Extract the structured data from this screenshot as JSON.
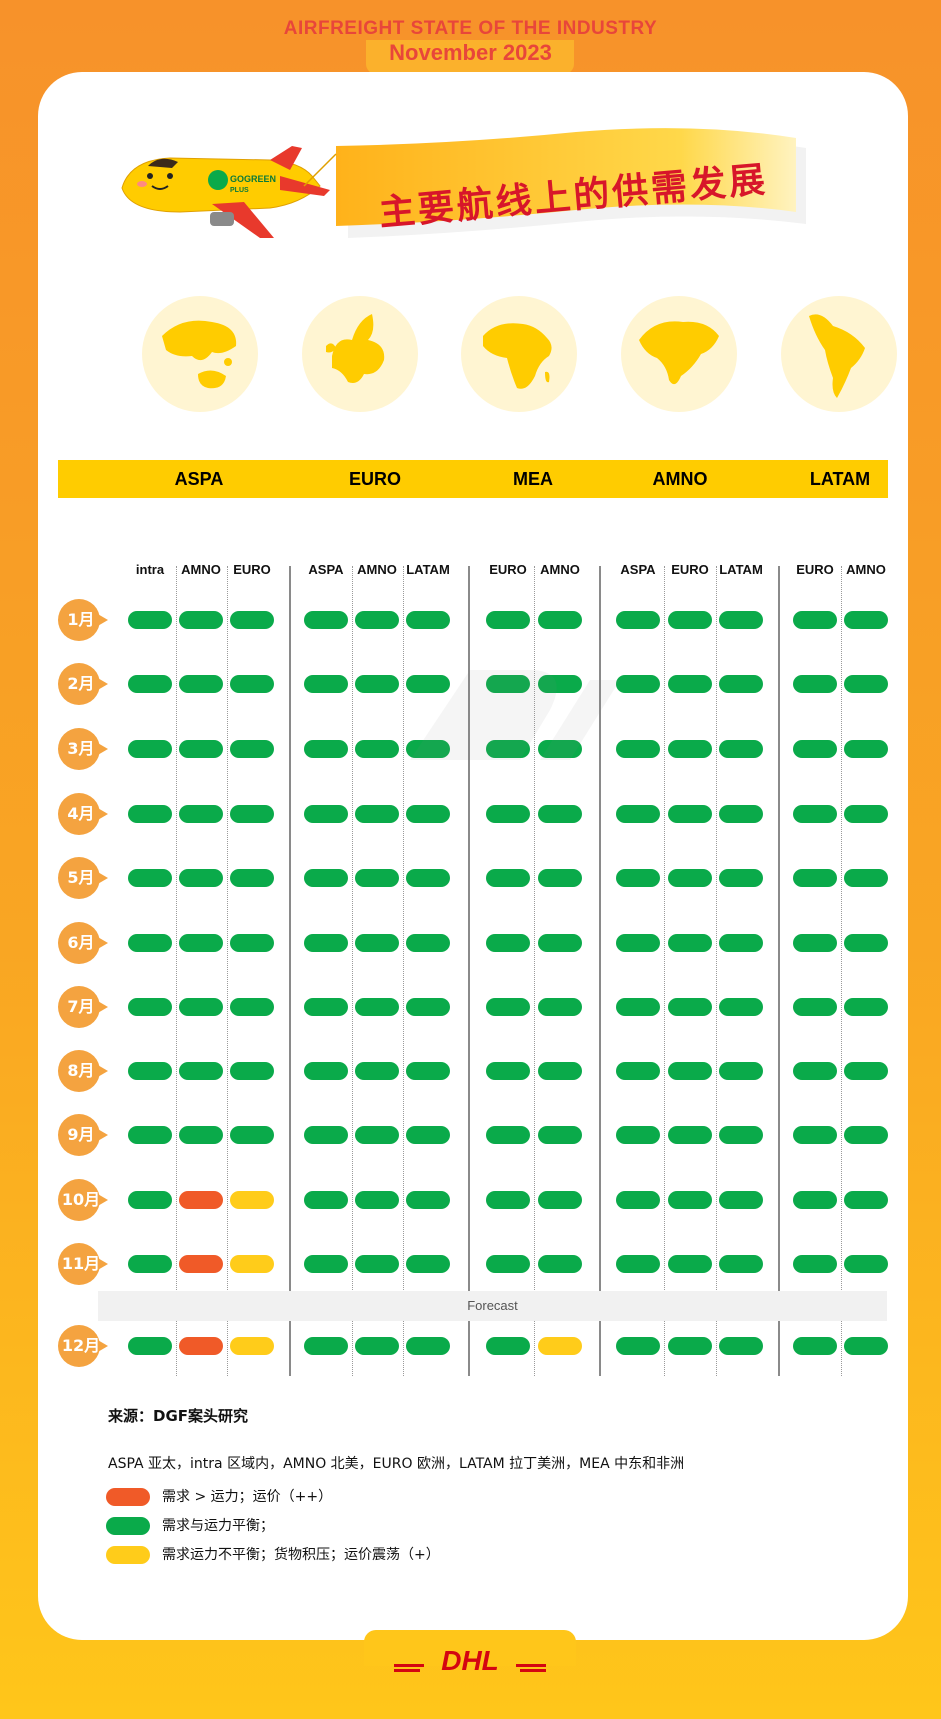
{
  "header": {
    "line1": "AIRFREIGHT STATE OF THE INDUSTRY",
    "line2": "November 2023"
  },
  "banner": {
    "title": "主要航线上的供需发展"
  },
  "plane": {
    "brand_line1": "GOGREEN",
    "brand_line2": "PLUS"
  },
  "globes": [
    "asia-pacific-map-icon",
    "europe-map-icon",
    "africa-map-icon",
    "north-america-map-icon",
    "south-america-map-icon"
  ],
  "colors": {
    "red": "#f05a28",
    "green": "#0aaa4a",
    "yellow": "#ffcc1a",
    "month_badge": "#f4a340",
    "region_bar": "#ffcc00",
    "dhl_red": "#d40511"
  },
  "chart_data": {
    "type": "table",
    "title": "主要航线上的供需发展",
    "regions": [
      {
        "name": "ASPA",
        "lanes": [
          "intra",
          "AMNO",
          "EURO"
        ]
      },
      {
        "name": "EURO",
        "lanes": [
          "ASPA",
          "AMNO",
          "LATAM"
        ]
      },
      {
        "name": "MEA",
        "lanes": [
          "EURO",
          "AMNO"
        ]
      },
      {
        "name": "AMNO",
        "lanes": [
          "ASPA",
          "EURO",
          "LATAM"
        ]
      },
      {
        "name": "LATAM",
        "lanes": [
          "EURO",
          "AMNO"
        ]
      }
    ],
    "months": [
      "1月",
      "2月",
      "3月",
      "4月",
      "5月",
      "6月",
      "7月",
      "8月",
      "9月",
      "10月",
      "11月",
      "12月"
    ],
    "forecast_label": "Forecast",
    "forecast_from_month_index": 11,
    "status": [
      [
        "green",
        "green",
        "green",
        "green",
        "green",
        "green",
        "green",
        "green",
        "green",
        "green",
        "green",
        "green",
        "green"
      ],
      [
        "green",
        "green",
        "green",
        "green",
        "green",
        "green",
        "green",
        "green",
        "green",
        "green",
        "green",
        "green",
        "green"
      ],
      [
        "green",
        "green",
        "green",
        "green",
        "green",
        "green",
        "green",
        "green",
        "green",
        "green",
        "green",
        "green",
        "green"
      ],
      [
        "green",
        "green",
        "green",
        "green",
        "green",
        "green",
        "green",
        "green",
        "green",
        "green",
        "green",
        "green",
        "green"
      ],
      [
        "green",
        "green",
        "green",
        "green",
        "green",
        "green",
        "green",
        "green",
        "green",
        "green",
        "green",
        "green",
        "green"
      ],
      [
        "green",
        "green",
        "green",
        "green",
        "green",
        "green",
        "green",
        "green",
        "green",
        "green",
        "green",
        "green",
        "green"
      ],
      [
        "green",
        "green",
        "green",
        "green",
        "green",
        "green",
        "green",
        "green",
        "green",
        "green",
        "green",
        "green",
        "green"
      ],
      [
        "green",
        "green",
        "green",
        "green",
        "green",
        "green",
        "green",
        "green",
        "green",
        "green",
        "green",
        "green",
        "green"
      ],
      [
        "green",
        "green",
        "green",
        "green",
        "green",
        "green",
        "green",
        "green",
        "green",
        "green",
        "green",
        "green",
        "green"
      ],
      [
        "green",
        "red",
        "yellow",
        "green",
        "green",
        "green",
        "green",
        "green",
        "green",
        "green",
        "green",
        "green",
        "green"
      ],
      [
        "green",
        "red",
        "yellow",
        "green",
        "green",
        "green",
        "green",
        "green",
        "green",
        "green",
        "green",
        "green",
        "green"
      ],
      [
        "green",
        "red",
        "yellow",
        "green",
        "green",
        "green",
        "green",
        "yellow",
        "green",
        "green",
        "green",
        "green",
        "green"
      ]
    ]
  },
  "footer": {
    "source": "来源：DGF案头研究",
    "abbreviations": "ASPA 亚太，intra 区域内，AMNO 北美，EURO 欧洲，LATAM 拉丁美洲，MEA 中东和非洲",
    "legend": [
      {
        "color": "red",
        "text": "需求 > 运力；运价（++）"
      },
      {
        "color": "green",
        "text": "需求与运力平衡；"
      },
      {
        "color": "yellow",
        "text": "需求运力不平衡；货物积压；运价震荡（+）"
      }
    ],
    "brand": "DHL"
  }
}
